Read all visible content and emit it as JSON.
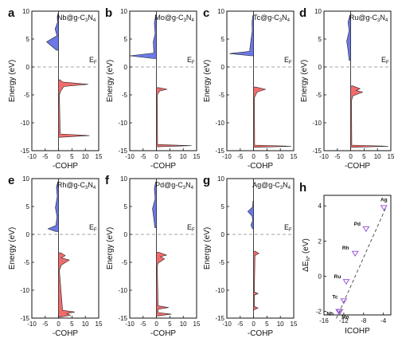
{
  "figure": {
    "common": {
      "ylabel": "Energy (eV)",
      "xlabel": "-COHP",
      "fermi_label": "E",
      "fermi_sub": "F",
      "ylim": [
        -15,
        10
      ],
      "xlim": [
        -10,
        15
      ],
      "yticks": [
        -15,
        -10,
        -5,
        0,
        5,
        10
      ],
      "xticks": [
        -10,
        -5,
        0,
        5,
        10,
        15
      ],
      "bonding_color": "#f26b6b",
      "antibonding_color": "#6b78e6"
    }
  },
  "chart_data": [
    {
      "type": "area",
      "panel": "a",
      "metal": "Nb@g-C",
      "sub": "3",
      "tail": "N",
      "sub2": "4",
      "antibonding": [
        [
          -0.8,
          3.0
        ],
        [
          -4.5,
          4.5
        ],
        [
          -0.6,
          5.6
        ],
        [
          -1.3,
          6.8
        ],
        [
          -0.4,
          8.0
        ],
        [
          -0.5,
          9.0
        ],
        [
          -0.2,
          9.6
        ]
      ],
      "bonding": [
        [
          0.5,
          -2.3
        ],
        [
          1.5,
          -2.7
        ],
        [
          11.0,
          -3.1
        ],
        [
          2.0,
          -3.5
        ],
        [
          0.8,
          -4.3
        ],
        [
          0.3,
          -5.0
        ],
        [
          0.6,
          -12.0
        ],
        [
          11.5,
          -12.3
        ],
        [
          0.6,
          -12.6
        ]
      ]
    },
    {
      "type": "area",
      "panel": "b",
      "metal": "Mo@g-C",
      "sub": "3",
      "tail": "N",
      "sub2": "4",
      "antibonding": [
        [
          -1.0,
          1.5
        ],
        [
          -10.0,
          2.0
        ],
        [
          -1.0,
          2.5
        ],
        [
          -1.2,
          4.5
        ],
        [
          -0.5,
          6.0
        ],
        [
          -0.8,
          7.8
        ],
        [
          -0.3,
          9.3
        ]
      ],
      "bonding": [
        [
          0.8,
          -3.7
        ],
        [
          4.0,
          -4.0
        ],
        [
          1.2,
          -4.3
        ],
        [
          0.3,
          -5.0
        ],
        [
          0.4,
          -13.9
        ],
        [
          13.0,
          -14.1
        ],
        [
          0.5,
          -14.3
        ]
      ]
    },
    {
      "type": "area",
      "panel": "c",
      "metal": "Tc@g-C",
      "sub": "3",
      "tail": "N",
      "sub2": "4",
      "antibonding": [
        [
          -1.0,
          2.0
        ],
        [
          -9.0,
          2.4
        ],
        [
          -1.5,
          2.8
        ],
        [
          -1.0,
          4.8
        ],
        [
          -0.5,
          6.5
        ],
        [
          -0.6,
          8.0
        ],
        [
          -0.3,
          9.2
        ]
      ],
      "bonding": [
        [
          0.8,
          -3.6
        ],
        [
          4.5,
          -4.0
        ],
        [
          1.3,
          -4.5
        ],
        [
          0.3,
          -5.5
        ],
        [
          0.4,
          -14.0
        ],
        [
          14.0,
          -14.2
        ],
        [
          0.5,
          -14.4
        ]
      ]
    },
    {
      "type": "area",
      "panel": "d",
      "metal": "Ru@g-C",
      "sub": "3",
      "tail": "N",
      "sub2": "4",
      "antibonding": [
        [
          -0.6,
          1.2
        ],
        [
          -1.0,
          3.0
        ],
        [
          -1.5,
          4.6
        ],
        [
          -0.6,
          6.5
        ],
        [
          -1.0,
          8.0
        ],
        [
          -0.3,
          9.3
        ]
      ],
      "bonding": [
        [
          0.8,
          -3.4
        ],
        [
          3.5,
          -3.9
        ],
        [
          2.0,
          -4.2
        ],
        [
          4.5,
          -4.5
        ],
        [
          0.8,
          -5.2
        ],
        [
          0.3,
          -6.0
        ],
        [
          0.4,
          -14.0
        ],
        [
          14.0,
          -14.2
        ],
        [
          0.5,
          -14.4
        ]
      ]
    },
    {
      "type": "area",
      "panel": "e",
      "metal": "Rh@g-C",
      "sub": "3",
      "tail": "N",
      "sub2": "4",
      "antibonding": [
        [
          -1.0,
          0.5
        ],
        [
          -4.0,
          1.0
        ],
        [
          -1.0,
          1.6
        ],
        [
          -0.6,
          3.2
        ],
        [
          -1.2,
          4.8
        ],
        [
          -0.5,
          6.8
        ],
        [
          -0.8,
          8.5
        ],
        [
          -0.2,
          9.5
        ]
      ],
      "bonding": [
        [
          0.8,
          -3.3
        ],
        [
          2.5,
          -3.8
        ],
        [
          1.0,
          -4.2
        ],
        [
          4.0,
          -4.6
        ],
        [
          1.0,
          -5.5
        ],
        [
          0.3,
          -6.5
        ],
        [
          1.5,
          -13.6
        ],
        [
          6.0,
          -13.9
        ],
        [
          3.0,
          -14.2
        ],
        [
          4.5,
          -14.5
        ],
        [
          0.8,
          -14.8
        ]
      ]
    },
    {
      "type": "area",
      "panel": "f",
      "metal": "Pd@g-C",
      "sub": "3",
      "tail": "N",
      "sub2": "4",
      "antibonding": [
        [
          -0.6,
          1.2
        ],
        [
          -1.0,
          2.8
        ],
        [
          -1.5,
          4.6
        ],
        [
          -0.5,
          6.4
        ],
        [
          -0.8,
          8.2
        ],
        [
          -0.3,
          9.4
        ]
      ],
      "bonding": [
        [
          0.8,
          -3.2
        ],
        [
          3.8,
          -3.7
        ],
        [
          1.5,
          -4.0
        ],
        [
          3.0,
          -4.4
        ],
        [
          0.5,
          -5.2
        ],
        [
          0.3,
          -6.0
        ],
        [
          0.6,
          -12.8
        ],
        [
          4.5,
          -13.1
        ],
        [
          0.6,
          -13.4
        ],
        [
          0.6,
          -14.0
        ],
        [
          5.5,
          -14.3
        ],
        [
          0.6,
          -14.6
        ]
      ]
    },
    {
      "type": "area",
      "panel": "g",
      "metal": "Ag@g-C",
      "sub": "3",
      "tail": "N",
      "sub2": "4",
      "antibonding": [
        [
          -0.4,
          1.0
        ],
        [
          -1.0,
          1.7
        ],
        [
          -0.3,
          2.5
        ],
        [
          -0.6,
          3.3
        ],
        [
          -2.2,
          4.1
        ],
        [
          -0.4,
          4.9
        ],
        [
          -0.2,
          6.0
        ]
      ],
      "bonding": [
        [
          0.5,
          -3.0
        ],
        [
          2.0,
          -3.4
        ],
        [
          0.5,
          -3.8
        ],
        [
          0.3,
          -10.3
        ],
        [
          1.7,
          -10.6
        ],
        [
          0.3,
          -10.9
        ],
        [
          0.3,
          -12.9
        ],
        [
          1.7,
          -13.2
        ],
        [
          0.3,
          -13.5
        ]
      ]
    },
    {
      "type": "scatter",
      "panel": "h",
      "xlabel": "ICOHP",
      "ylabel": "ΔE",
      "ylabel_sub": "N*",
      "ylabel_tail": "(eV)",
      "xlim": [
        -16,
        -2.5
      ],
      "ylim": [
        -2.2,
        4.6
      ],
      "xticks": [
        -16,
        -12,
        -8,
        -4
      ],
      "yticks": [
        -2,
        0,
        2,
        4
      ],
      "marker_color": "#9b59d6",
      "points": [
        {
          "label": "Nb",
          "x": -13.0,
          "y": -2.0
        },
        {
          "label": "Mo",
          "x": -12.8,
          "y": -2.0
        },
        {
          "label": "Tc",
          "x": -12.0,
          "y": -1.4
        },
        {
          "label": "Ru",
          "x": -11.5,
          "y": -0.3
        },
        {
          "label": "Rh",
          "x": -9.7,
          "y": 1.3
        },
        {
          "label": "Pd",
          "x": -7.5,
          "y": 2.7
        },
        {
          "label": "Ag",
          "x": -3.9,
          "y": 3.9
        }
      ],
      "fit": [
        [
          -13.5,
          -2.4
        ],
        [
          -3.5,
          3.9
        ]
      ]
    }
  ]
}
